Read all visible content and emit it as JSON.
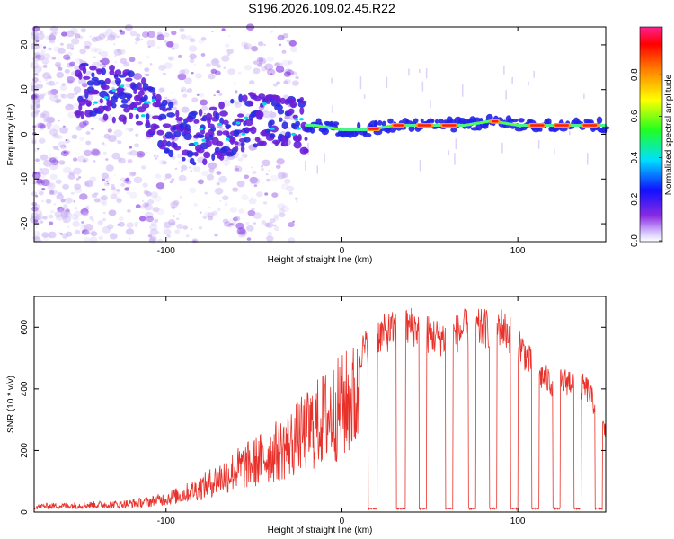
{
  "title": "S196.2026.109.02.45.R22",
  "chart_data": [
    {
      "type": "heatmap",
      "name": "spectrogram",
      "xlabel": "Height of straight line (km)",
      "ylabel": "Frequency (Hz)",
      "xlim": [
        -175,
        150
      ],
      "ylim": [
        -24,
        24
      ],
      "xticks": [
        -100,
        0,
        100
      ],
      "yticks": [
        20,
        10,
        0,
        -10,
        -20
      ],
      "colorbar": {
        "label": "Normalized spectral amplitude",
        "range": [
          0,
          1
        ],
        "ticks": [
          "0.0",
          "0.2",
          "0.4",
          "0.6",
          "0.8"
        ]
      },
      "ridge": [
        {
          "x": -140,
          "y": 10
        },
        {
          "x": -120,
          "y": 8
        },
        {
          "x": -110,
          "y": 6
        },
        {
          "x": -100,
          "y": 2
        },
        {
          "x": -90,
          "y": 0
        },
        {
          "x": -80,
          "y": -1
        },
        {
          "x": -60,
          "y": 2
        },
        {
          "x": -45,
          "y": 4
        },
        {
          "x": -30,
          "y": 2
        },
        {
          "x": -15,
          "y": 2
        },
        {
          "x": 0,
          "y": 1
        },
        {
          "x": 15,
          "y": 1
        },
        {
          "x": 30,
          "y": 2
        },
        {
          "x": 50,
          "y": 2
        },
        {
          "x": 70,
          "y": 2
        },
        {
          "x": 85,
          "y": 3
        },
        {
          "x": 100,
          "y": 2
        },
        {
          "x": 120,
          "y": 2
        },
        {
          "x": 150,
          "y": 2
        }
      ]
    },
    {
      "type": "line",
      "name": "snr",
      "xlabel": "Height of straight line (km)",
      "ylabel": "SNR (10 * v/v)",
      "xlim": [
        -175,
        150
      ],
      "ylim": [
        0,
        700
      ],
      "xticks": [
        -100,
        0,
        100
      ],
      "yticks": [
        0,
        200,
        400,
        600
      ],
      "color": "#e8312a",
      "envelope": [
        {
          "x": -175,
          "y": 25
        },
        {
          "x": -150,
          "y": 30
        },
        {
          "x": -125,
          "y": 35
        },
        {
          "x": -110,
          "y": 45
        },
        {
          "x": -100,
          "y": 60
        },
        {
          "x": -90,
          "y": 80
        },
        {
          "x": -80,
          "y": 110
        },
        {
          "x": -70,
          "y": 150
        },
        {
          "x": -60,
          "y": 190
        },
        {
          "x": -50,
          "y": 220
        },
        {
          "x": -40,
          "y": 260
        },
        {
          "x": -30,
          "y": 300
        },
        {
          "x": -20,
          "y": 360
        },
        {
          "x": -10,
          "y": 420
        },
        {
          "x": 0,
          "y": 470
        },
        {
          "x": 10,
          "y": 520
        },
        {
          "x": 20,
          "y": 580
        },
        {
          "x": 40,
          "y": 610
        },
        {
          "x": 50,
          "y": 580
        },
        {
          "x": 60,
          "y": 570
        },
        {
          "x": 70,
          "y": 600
        },
        {
          "x": 80,
          "y": 600
        },
        {
          "x": 90,
          "y": 610
        },
        {
          "x": 100,
          "y": 560
        },
        {
          "x": 110,
          "y": 460
        },
        {
          "x": 120,
          "y": 420
        },
        {
          "x": 130,
          "y": 430
        },
        {
          "x": 140,
          "y": 400
        },
        {
          "x": 150,
          "y": 260
        }
      ],
      "dropouts": [
        [
          15,
          20
        ],
        [
          31,
          36
        ],
        [
          44,
          48
        ],
        [
          59,
          63
        ],
        [
          72,
          76
        ],
        [
          84,
          88
        ],
        [
          96,
          100
        ],
        [
          108,
          112
        ],
        [
          120,
          124
        ],
        [
          132,
          136
        ],
        [
          144,
          148
        ]
      ]
    }
  ]
}
